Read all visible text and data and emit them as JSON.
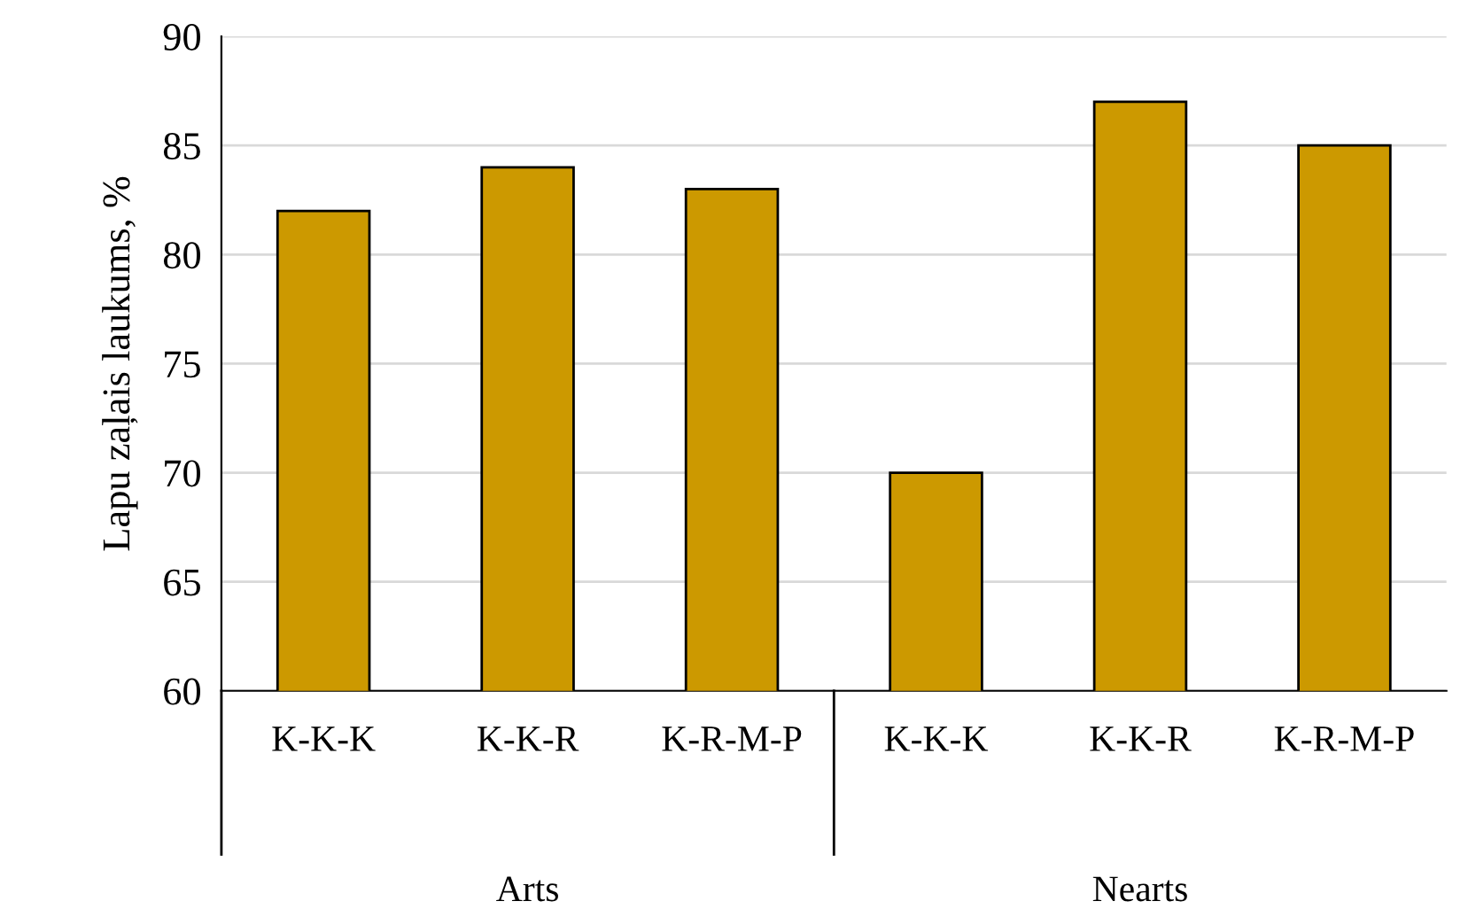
{
  "chart_data": {
    "type": "bar",
    "ylabel": "Lapu zaļais laukums, %",
    "categories": [
      "K-K-K",
      "K-K-R",
      "K-R-M-P",
      "K-K-K",
      "K-K-R",
      "K-R-M-P"
    ],
    "values": [
      82,
      84,
      83,
      70,
      87,
      85
    ],
    "color": "#cc9900",
    "ylim": [
      60,
      90
    ],
    "yticks": [
      60,
      65,
      70,
      75,
      80,
      85,
      90
    ],
    "grid": "y",
    "annotations": [
      "Arts",
      "Nearts"
    ]
  }
}
